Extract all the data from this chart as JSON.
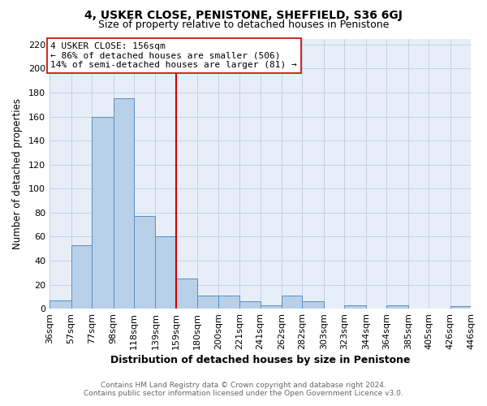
{
  "title": "4, USKER CLOSE, PENISTONE, SHEFFIELD, S36 6GJ",
  "subtitle": "Size of property relative to detached houses in Penistone",
  "xlabel": "Distribution of detached houses by size in Penistone",
  "ylabel": "Number of detached properties",
  "bar_edges": [
    36,
    57,
    77,
    98,
    118,
    139,
    159,
    180,
    200,
    221,
    241,
    262,
    282,
    303,
    323,
    344,
    364,
    385,
    405,
    426,
    446
  ],
  "bar_heights": [
    7,
    53,
    160,
    175,
    77,
    60,
    25,
    11,
    11,
    6,
    3,
    11,
    6,
    0,
    3,
    0,
    3,
    0,
    0,
    2
  ],
  "bar_color": "#b8d0e8",
  "bar_edge_color": "#5590c8",
  "vline_x": 159,
  "vline_color": "#cc0000",
  "annotation_line1": "4 USKER CLOSE: 156sqm",
  "annotation_line2": "← 86% of detached houses are smaller (506)",
  "annotation_line3": "14% of semi-detached houses are larger (81) →",
  "ylim": [
    0,
    225
  ],
  "yticks": [
    0,
    20,
    40,
    60,
    80,
    100,
    120,
    140,
    160,
    180,
    200,
    220
  ],
  "tick_labels": [
    "36sqm",
    "57sqm",
    "77sqm",
    "98sqm",
    "118sqm",
    "139sqm",
    "159sqm",
    "180sqm",
    "200sqm",
    "221sqm",
    "241sqm",
    "262sqm",
    "282sqm",
    "303sqm",
    "323sqm",
    "344sqm",
    "364sqm",
    "385sqm",
    "405sqm",
    "426sqm",
    "446sqm"
  ],
  "footnote": "Contains HM Land Registry data © Crown copyright and database right 2024.\nContains public sector information licensed under the Open Government Licence v3.0.",
  "bg_color": "#ffffff",
  "plot_bg_color": "#e8eef8",
  "grid_color": "#c8d0e0"
}
